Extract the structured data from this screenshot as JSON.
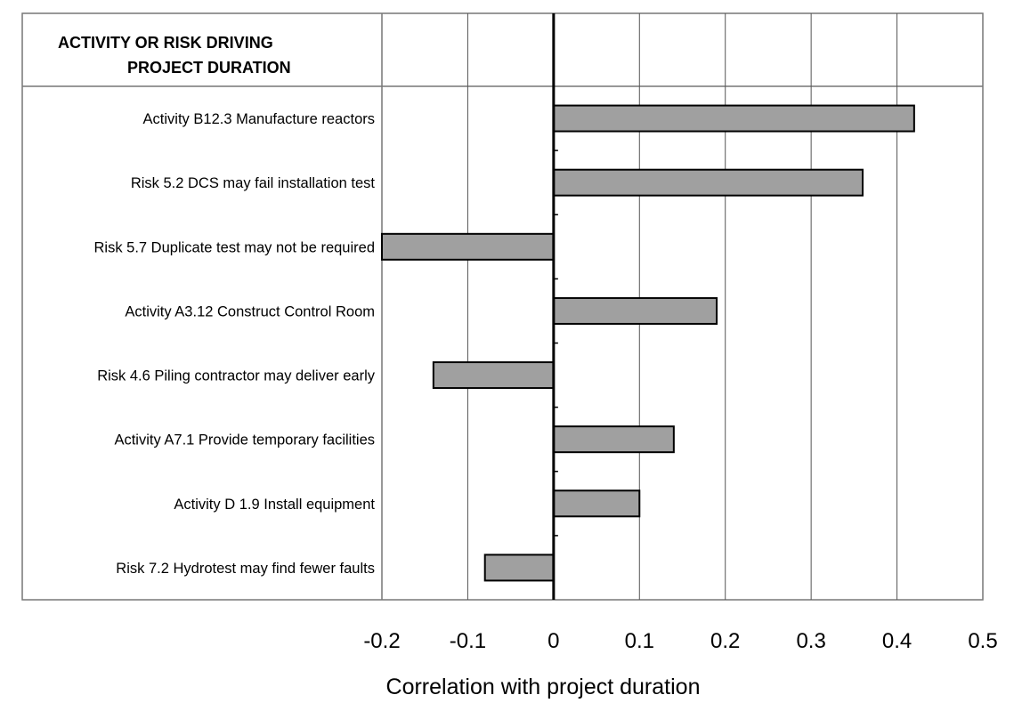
{
  "chart_data": {
    "type": "bar",
    "orientation": "horizontal",
    "header_label": "ACTIVITY OR RISK DRIVING PROJECT DURATION",
    "header_lines": [
      "ACTIVITY OR RISK DRIVING",
      "PROJECT DURATION"
    ],
    "xlabel": "Correlation with project duration",
    "ylabel": "",
    "xlim": [
      -0.2,
      0.5
    ],
    "x_ticks": [
      -0.2,
      -0.1,
      0,
      0.1,
      0.2,
      0.3,
      0.4,
      0.5
    ],
    "x_tick_labels": [
      "-0.2",
      "-0.1",
      "0",
      "0.1",
      "0.2",
      "0.3",
      "0.4",
      "0.5"
    ],
    "grid": true,
    "categories": [
      "Activity B12.3 Manufacture reactors",
      "Risk 5.2 DCS may fail installation test",
      "Risk 5.7 Duplicate test may not be required",
      "Activity A3.12 Construct Control Room",
      "Risk 4.6 Piling contractor may deliver early",
      "Activity A7.1 Provide temporary facilities",
      "Activity D 1.9 Install equipment",
      "Risk 7.2 Hydrotest may find fewer faults"
    ],
    "values": [
      0.42,
      0.36,
      -0.2,
      0.19,
      -0.14,
      0.14,
      0.1,
      -0.08
    ],
    "colors": {
      "bar_fill": "#a0a0a0",
      "bar_stroke": "#000000",
      "grid": "#555555",
      "frame": "#777777",
      "zero_line": "#000000",
      "text": "#000000"
    }
  }
}
